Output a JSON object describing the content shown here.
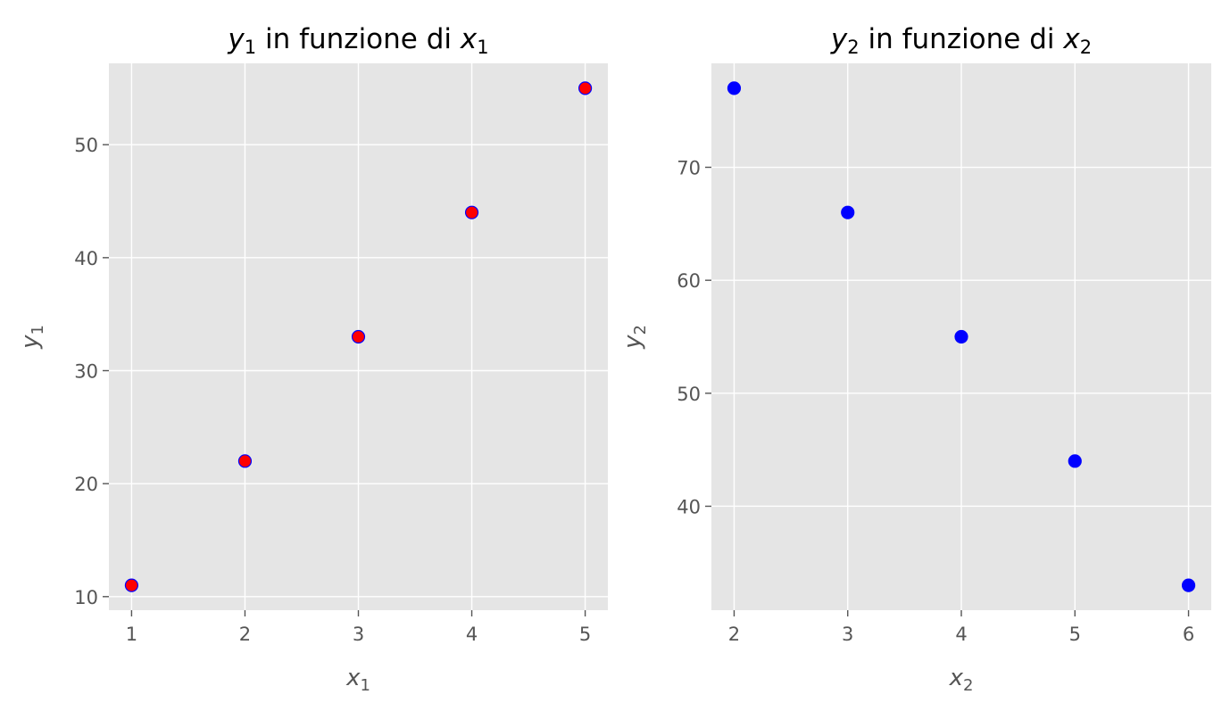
{
  "chart_data": [
    {
      "type": "scatter",
      "title": {
        "var": "y",
        "sub": "1",
        "middle": " in funzione di ",
        "var2": "x",
        "sub2": "1"
      },
      "xlabel": {
        "var": "x",
        "sub": "1"
      },
      "ylabel": {
        "var": "y",
        "sub": "1"
      },
      "x": [
        1,
        2,
        3,
        4,
        5
      ],
      "y": [
        11,
        22,
        33,
        44,
        55
      ],
      "xlim": [
        0.8,
        5.2
      ],
      "ylim": [
        8.8,
        57.2
      ],
      "xticks": [
        1,
        2,
        3,
        4,
        5
      ],
      "yticks": [
        10,
        20,
        30,
        40,
        50
      ],
      "marker_fill": "#ff0000",
      "marker_edge": "#0000ff",
      "grid": true
    },
    {
      "type": "scatter",
      "title": {
        "var": "y",
        "sub": "2",
        "middle": " in funzione di ",
        "var2": "x",
        "sub2": "2"
      },
      "xlabel": {
        "var": "x",
        "sub": "2"
      },
      "ylabel": {
        "var": "y",
        "sub": "2"
      },
      "x": [
        2,
        3,
        4,
        5,
        6
      ],
      "y": [
        77,
        66,
        55,
        44,
        33
      ],
      "xlim": [
        1.8,
        6.2
      ],
      "ylim": [
        30.8,
        79.2
      ],
      "xticks": [
        2,
        3,
        4,
        5,
        6
      ],
      "yticks": [
        40,
        50,
        60,
        70
      ],
      "marker_fill": "#0000ff",
      "marker_edge": "#0000ff",
      "grid": true
    }
  ],
  "style": {
    "panel_bg": "#e5e5e5",
    "grid_color": "#ffffff",
    "text_color": "#555555"
  }
}
